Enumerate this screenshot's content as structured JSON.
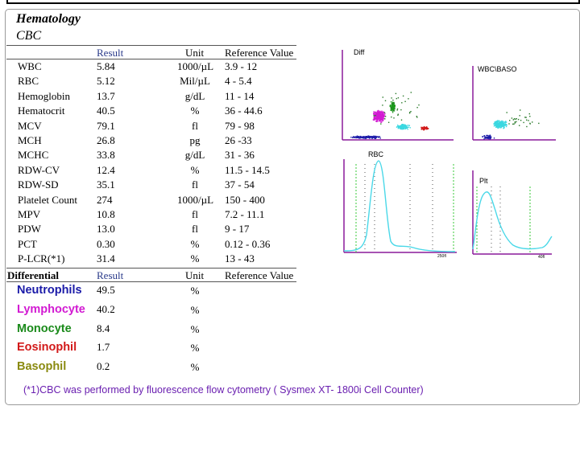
{
  "report": {
    "section": "Hematology",
    "panel": "CBC",
    "headers": {
      "result": "Result",
      "unit": "Unit",
      "reference": "Reference Value"
    },
    "cbc_rows": [
      {
        "name": "WBC",
        "result": "5.84",
        "unit": "1000/µL",
        "ref": "3.9 - 12"
      },
      {
        "name": "RBC",
        "result": "5.12",
        "unit": "Mil/µL",
        "ref": "4 - 5.4"
      },
      {
        "name": "Hemoglobin",
        "result": "13.7",
        "unit": "g/dL",
        "ref": "11 - 14"
      },
      {
        "name": "Hematocrit",
        "result": "40.5",
        "unit": "%",
        "ref": "36 - 44.6"
      },
      {
        "name": "MCV",
        "result": "79.1",
        "unit": "fl",
        "ref": "79 - 98"
      },
      {
        "name": "MCH",
        "result": "26.8",
        "unit": "pg",
        "ref": "26 -33"
      },
      {
        "name": "MCHC",
        "result": "33.8",
        "unit": "g/dL",
        "ref": "31 - 36"
      },
      {
        "name": "RDW-CV",
        "result": "12.4",
        "unit": "%",
        "ref": "11.5 - 14.5"
      },
      {
        "name": "RDW-SD",
        "result": "35.1",
        "unit": "fl",
        "ref": "37 - 54"
      },
      {
        "name": "Platelet Count",
        "result": "274",
        "unit": "1000/µL",
        "ref": "150 - 400"
      },
      {
        "name": "MPV",
        "result": "10.8",
        "unit": "fl",
        "ref": "7.2 - 11.1"
      },
      {
        "name": "PDW",
        "result": "13.0",
        "unit": "fl",
        "ref": "9 - 17"
      },
      {
        "name": "PCT",
        "result": "0.30",
        "unit": "%",
        "ref": "0.12 - 0.36"
      },
      {
        "name": "P-LCR(*1)",
        "result": "31.4",
        "unit": "%",
        "ref": "13 - 43"
      }
    ],
    "differential": {
      "title": "Differential",
      "headers": {
        "result": "Result",
        "unit": "Unit",
        "reference": "Reference Value"
      },
      "rows": [
        {
          "name": "Neutrophils",
          "result": "49.5",
          "unit": "%",
          "color": "#1a1aa8"
        },
        {
          "name": "Lymphocyte",
          "result": "40.2",
          "unit": "%",
          "color": "#d21ad2"
        },
        {
          "name": "Monocyte",
          "result": "8.4",
          "unit": "%",
          "color": "#1a8a1a"
        },
        {
          "name": "Eosinophil",
          "result": "1.7",
          "unit": "%",
          "color": "#d21a1a"
        },
        {
          "name": "Basophil",
          "result": "0.2",
          "unit": "%",
          "color": "#8a8a10"
        }
      ]
    },
    "footnote": "(*1)CBC was performed by fluorescence flow cytometry ( Sysmex XT- 1800i Cell Counter)"
  },
  "plots": {
    "diff_label": "Diff",
    "wbc_baso_label": "WBC\\BASO",
    "rbc_label": "RBC",
    "plt_label": "Plt",
    "rbc_axis_label": "250fl",
    "plt_axis_label": "40fl",
    "axis_color": "#8a1a9a",
    "curve_color": "#4ad8e8",
    "marker_color": "#3ac83a"
  }
}
